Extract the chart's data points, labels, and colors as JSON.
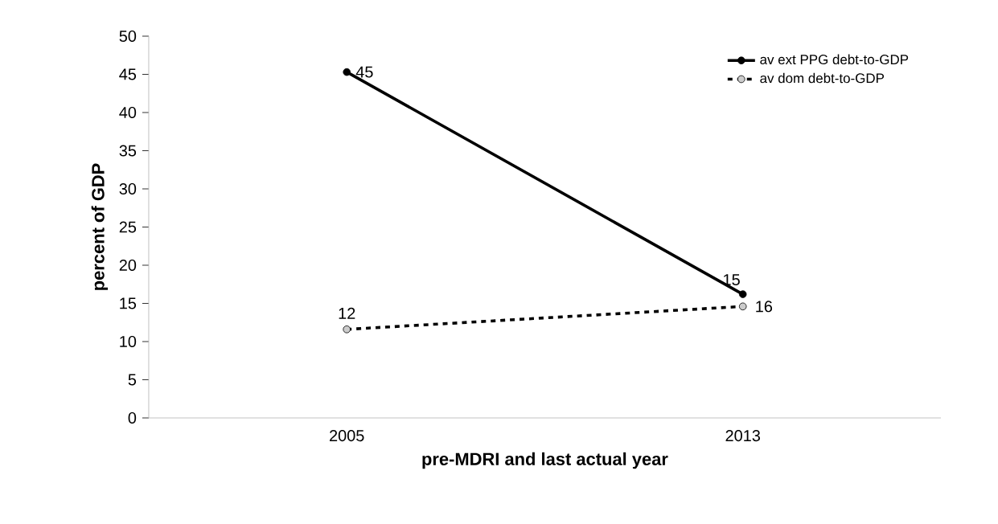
{
  "chart_data": {
    "type": "line",
    "xlabel": "pre-MDRI  and last  actual year",
    "ylabel": "percent of GDP",
    "categories": [
      "2005",
      "2013"
    ],
    "series": [
      {
        "name": "av ext PPG debt-to-GDP",
        "color": "#000000",
        "values": [
          45.3,
          16.2
        ],
        "line_style": "solid",
        "value_labels": [
          "45",
          null
        ]
      },
      {
        "name": "av dom debt-to-GDP",
        "color": "#000000",
        "values": [
          11.6,
          14.6
        ],
        "line_style": "dashed",
        "value_labels": [
          "12",
          null
        ]
      }
    ],
    "annotations": [
      {
        "text": "15",
        "x": "2013",
        "y": 16.2
      },
      {
        "text": "16",
        "x": "2013",
        "y": 14.6
      }
    ],
    "ylim": [
      0,
      50
    ],
    "yticks": [
      0,
      5,
      10,
      15,
      20,
      25,
      30,
      35,
      40,
      45,
      50
    ],
    "grid": false,
    "legend": "top right",
    "marker": "circle"
  }
}
